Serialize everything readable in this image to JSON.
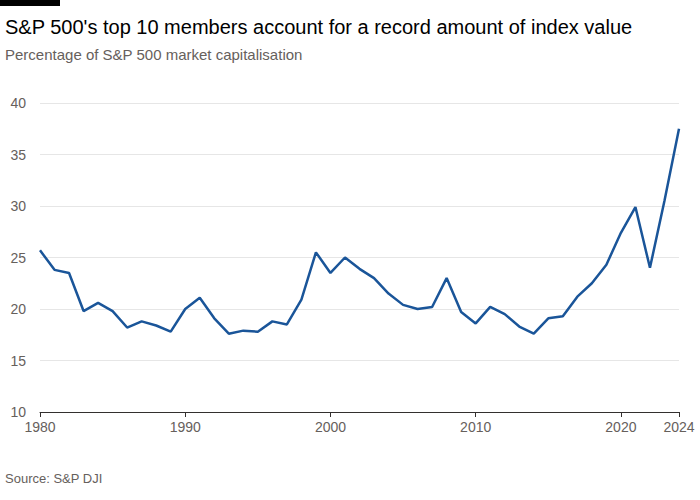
{
  "chart_data": {
    "type": "line",
    "title": "S&P 500's top 10 members account for a record amount of index value",
    "subtitle": "Percentage of S&P 500 market capitalisation",
    "source": "Source: S&P DJI",
    "x": [
      1980,
      1981,
      1982,
      1983,
      1984,
      1985,
      1986,
      1987,
      1988,
      1989,
      1990,
      1991,
      1992,
      1993,
      1994,
      1995,
      1996,
      1997,
      1998,
      1999,
      2000,
      2001,
      2002,
      2003,
      2004,
      2005,
      2006,
      2007,
      2008,
      2009,
      2010,
      2011,
      2012,
      2013,
      2014,
      2015,
      2016,
      2017,
      2018,
      2019,
      2020,
      2021,
      2022,
      2023,
      2024
    ],
    "values": [
      25.7,
      23.8,
      23.5,
      19.8,
      20.6,
      19.8,
      18.2,
      18.8,
      18.4,
      17.8,
      20.0,
      21.1,
      19.1,
      17.6,
      17.9,
      17.8,
      18.8,
      18.5,
      20.9,
      25.5,
      23.5,
      25.0,
      23.9,
      23.0,
      21.5,
      20.4,
      20.0,
      20.2,
      23.0,
      19.7,
      18.6,
      20.2,
      19.5,
      18.3,
      17.6,
      19.1,
      19.3,
      21.2,
      22.5,
      24.3,
      27.4,
      29.9,
      24.0,
      30.5,
      37.5
    ],
    "color": "#1a5599",
    "xlim": [
      1980,
      2024
    ],
    "xticks": [
      1980,
      1990,
      2000,
      2010,
      2020,
      2024
    ],
    "ylim": [
      10,
      40
    ],
    "yticks": [
      10,
      15,
      20,
      25,
      30,
      35,
      40
    ],
    "grid": true
  }
}
